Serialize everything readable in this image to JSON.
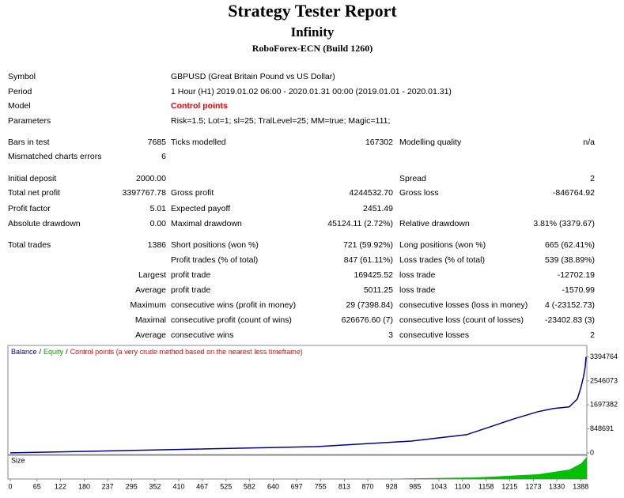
{
  "header": {
    "title": "Strategy Tester Report",
    "expert": "Infinity",
    "server": "RoboForex-ECN (Build 1260)"
  },
  "info": [
    {
      "label": "Symbol",
      "value": "GBPUSD (Great Britain Pound vs US Dollar)"
    },
    {
      "label": "Period",
      "value": "1 Hour (H1) 2019.01.02 06:00 - 2020.01.31 00:00 (2019.01.01 - 2020.01.31)"
    },
    {
      "label": "Model",
      "value": "Control points"
    },
    {
      "label": "Parameters",
      "value": "Risk=1.5; Lot=1; sl=25; TralLevel=25; MM=true; Magic=111;"
    }
  ],
  "stats": [
    [
      "Bars in test",
      "7685",
      "Ticks modelled",
      "167302",
      "Modelling quality",
      "n/a"
    ],
    [
      "Mismatched charts errors",
      "6",
      null,
      null,
      null,
      null
    ],
    [
      "Initial deposit",
      "2000.00",
      null,
      null,
      "Spread",
      "2"
    ],
    [
      "Total net profit",
      "3397767.78",
      "Gross profit",
      "4244532.70",
      "Gross loss",
      "-846764.92"
    ],
    [
      "Profit factor",
      "5.01",
      "Expected payoff",
      "2451.49",
      null,
      null
    ],
    [
      "Absolute drawdown",
      "0.00",
      "Maximal drawdown",
      "45124.11 (2.72%)",
      "Relative drawdown",
      "3.81% (3379.67)"
    ],
    [
      "Total trades",
      "1386",
      "Short positions (won %)",
      "721 (59.92%)",
      "Long positions (won %)",
      "665 (62.41%)"
    ],
    [
      null,
      null,
      "Profit trades (% of total)",
      "847 (61.11%)",
      "Loss trades (% of total)",
      "539 (38.89%)"
    ],
    [
      null,
      "Largest",
      "profit trade",
      "169425.52",
      "loss trade",
      "-12702.19"
    ],
    [
      null,
      "Average",
      "profit trade",
      "5011.25",
      "loss trade",
      "-1570.99"
    ],
    [
      null,
      "Maximum",
      "consecutive wins (profit in money)",
      "29 (7398.84)",
      "consecutive losses (loss in money)",
      "4 (-23152.73)"
    ],
    [
      null,
      "Maximal",
      "consecutive profit (count of wins)",
      "626676.60 (7)",
      "consecutive loss (count of losses)",
      "-23402.83 (3)"
    ],
    [
      null,
      "Average",
      "consecutive wins",
      "3",
      "consecutive losses",
      "2"
    ]
  ],
  "graph": {
    "legend": [
      {
        "name": "Balance",
        "color": "#00008b"
      },
      {
        "name": "Equity",
        "color": "#00a000"
      },
      {
        "name": "Control points (a very crude method based on the nearest less timeframe)",
        "color": "#ff0000"
      }
    ],
    "separator": "/",
    "size_label": "Size",
    "x": [
      0,
      360,
      745,
      976,
      1110,
      1168,
      1226,
      1284,
      1322,
      1360,
      1380,
      1389,
      1395,
      1399,
      1401
    ],
    "values": [
      2000,
      110000,
      224000,
      420000,
      645000,
      925000,
      1206000,
      1459000,
      1571000,
      1627000,
      1908000,
      2329000,
      2700000,
      3030000,
      3394764
    ],
    "xlim": [
      0,
      1403
    ],
    "ylim": [
      0,
      3800000
    ],
    "yticks": [
      3394764,
      2546073,
      1697382,
      848691,
      0
    ],
    "xticks": [
      0,
      65,
      122,
      180,
      237,
      295,
      352,
      410,
      467,
      525,
      582,
      640,
      697,
      755,
      813,
      870,
      928,
      985,
      1043,
      1100,
      1158,
      1215,
      1273,
      1330,
      1388
    ]
  }
}
